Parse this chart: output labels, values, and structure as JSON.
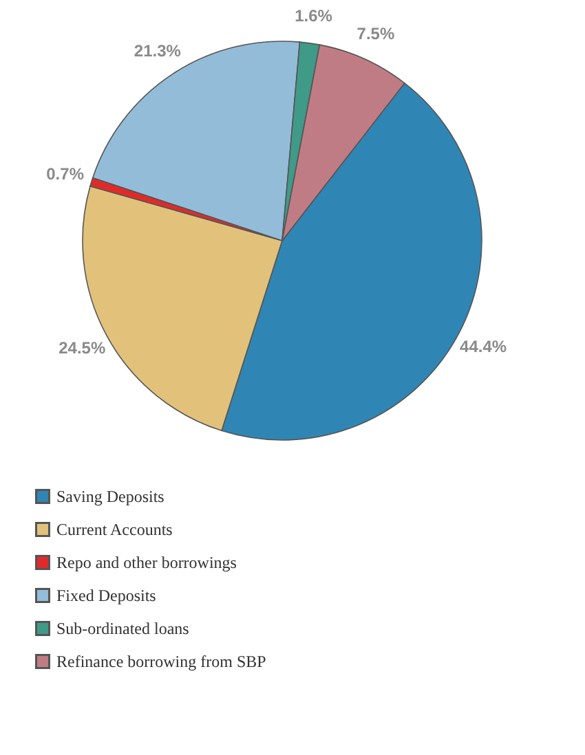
{
  "chart_data": {
    "type": "pie",
    "categories": [
      "Saving Deposits",
      "Current Accounts",
      "Repo and other borrowings",
      "Fixed Deposits",
      "Sub-ordinated loans",
      "Refinance borrowing from SBP"
    ],
    "values": [
      44.4,
      24.5,
      0.7,
      21.3,
      1.6,
      7.5
    ],
    "value_labels": [
      "44.4%",
      "24.5%",
      "0.7%",
      "21.3%",
      "1.6%",
      "7.5%"
    ],
    "colors": [
      "#2f86b4",
      "#e2c27a",
      "#e02a2a",
      "#93bcd9",
      "#3f9a88",
      "#c07c84"
    ],
    "legend": "bottom left"
  }
}
